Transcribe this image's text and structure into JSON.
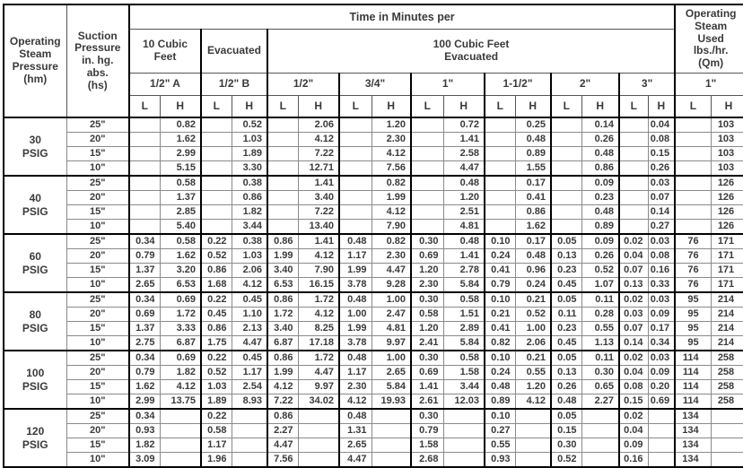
{
  "table": {
    "corner_operating": "Operating\nSteam\nPressure\n(hm)",
    "corner_suction": "Suction\nPressure\nin. hg.\nabs.\n(hs)",
    "time_header": "Time in Minutes per",
    "ten_cubic": "10 Cubic\nFeet",
    "evacuated": "Evacuated",
    "hundred_cubic": "100 Cubic Feet\nEvacuated",
    "steam_used": "Operating\nSteam\nUsed\nlbs./hr.\n(Qm)",
    "pipe_sizes": [
      "1/2\" A",
      "1/2\" B",
      "1/2\"",
      "3/4\"",
      "1\"",
      "1-1/2\"",
      "2\"",
      "3\"",
      "1\""
    ],
    "lh": [
      "L",
      "H"
    ],
    "groups": [
      {
        "pressure": "30\nPSIG",
        "rows": [
          {
            "suction": "25\"",
            "values": [
              "",
              "0.82",
              "",
              "0.52",
              "",
              "2.06",
              "",
              "1.20",
              "",
              "0.72",
              "",
              "0.25",
              "",
              "0.14",
              "",
              "0.04",
              "",
              "103"
            ]
          },
          {
            "suction": "20\"",
            "values": [
              "",
              "1.62",
              "",
              "1.03",
              "",
              "4.12",
              "",
              "2.30",
              "",
              "1.41",
              "",
              "0.48",
              "",
              "0.26",
              "",
              "0.08",
              "",
              "103"
            ]
          },
          {
            "suction": "15\"",
            "values": [
              "",
              "2.99",
              "",
              "1.89",
              "",
              "7.22",
              "",
              "4.12",
              "",
              "2.58",
              "",
              "0.89",
              "",
              "0.48",
              "",
              "0.15",
              "",
              "103"
            ]
          },
          {
            "suction": "10\"",
            "values": [
              "",
              "5.15",
              "",
              "3.30",
              "",
              "12.71",
              "",
              "7.56",
              "",
              "4.47",
              "",
              "1.55",
              "",
              "0.86",
              "",
              "0.26",
              "",
              "103"
            ]
          }
        ]
      },
      {
        "pressure": "40\nPSIG",
        "rows": [
          {
            "suction": "25\"",
            "values": [
              "",
              "0.58",
              "",
              "0.38",
              "",
              "1.41",
              "",
              "0.82",
              "",
              "0.48",
              "",
              "0.17",
              "",
              "0.09",
              "",
              "0.03",
              "",
              "126"
            ]
          },
          {
            "suction": "20\"",
            "values": [
              "",
              "1.37",
              "",
              "0.86",
              "",
              "3.40",
              "",
              "1.99",
              "",
              "1.20",
              "",
              "0.41",
              "",
              "0.23",
              "",
              "0.07",
              "",
              "126"
            ]
          },
          {
            "suction": "15\"",
            "values": [
              "",
              "2.85",
              "",
              "1.82",
              "",
              "7.22",
              "",
              "4.12",
              "",
              "2.51",
              "",
              "0.86",
              "",
              "0.48",
              "",
              "0.14",
              "",
              "126"
            ]
          },
          {
            "suction": "10\"",
            "values": [
              "",
              "5.40",
              "",
              "3.44",
              "",
              "13.40",
              "",
              "7.90",
              "",
              "4.81",
              "",
              "1.62",
              "",
              "0.89",
              "",
              "0.27",
              "",
              "126"
            ]
          }
        ]
      },
      {
        "pressure": "60\nPSIG",
        "rows": [
          {
            "suction": "25\"",
            "values": [
              "0.34",
              "0.58",
              "0.22",
              "0.38",
              "0.86",
              "1.41",
              "0.48",
              "0.82",
              "0.30",
              "0.48",
              "0.10",
              "0.17",
              "0.05",
              "0.09",
              "0.02",
              "0.03",
              "76",
              "171"
            ]
          },
          {
            "suction": "20\"",
            "values": [
              "0.79",
              "1.62",
              "0.52",
              "1.03",
              "1.99",
              "4.12",
              "1.17",
              "2.30",
              "0.69",
              "1.41",
              "0.24",
              "0.48",
              "0.13",
              "0.26",
              "0.04",
              "0.08",
              "76",
              "171"
            ]
          },
          {
            "suction": "15\"",
            "values": [
              "1.37",
              "3.20",
              "0.86",
              "2.06",
              "3.40",
              "7.90",
              "1.99",
              "4.47",
              "1.20",
              "2.78",
              "0.41",
              "0.96",
              "0.23",
              "0.52",
              "0.07",
              "0.16",
              "76",
              "171"
            ]
          },
          {
            "suction": "10\"",
            "values": [
              "2.65",
              "6.53",
              "1.68",
              "4.12",
              "6.53",
              "16.15",
              "3.78",
              "9.28",
              "2.30",
              "5.84",
              "0.79",
              "0.24",
              "0.45",
              "1.07",
              "0.13",
              "0.33",
              "76",
              "171"
            ]
          }
        ]
      },
      {
        "pressure": "80\nPSIG",
        "rows": [
          {
            "suction": "25\"",
            "values": [
              "0.34",
              "0.69",
              "0.22",
              "0.45",
              "0.86",
              "1.72",
              "0.48",
              "1.00",
              "0.30",
              "0.58",
              "0.10",
              "0.21",
              "0.05",
              "0.11",
              "0.02",
              "0.03",
              "95",
              "214"
            ]
          },
          {
            "suction": "20\"",
            "values": [
              "0.69",
              "1.72",
              "0.45",
              "1.10",
              "1.72",
              "4.12",
              "1.00",
              "2.47",
              "0.58",
              "1.51",
              "0.21",
              "0.52",
              "0.11",
              "0.28",
              "0.03",
              "0.09",
              "95",
              "214"
            ]
          },
          {
            "suction": "15\"",
            "values": [
              "1.37",
              "3.33",
              "0.86",
              "2.13",
              "3.40",
              "8.25",
              "1.99",
              "4.81",
              "1.20",
              "2.89",
              "0.41",
              "1.00",
              "0.23",
              "0.55",
              "0.07",
              "0.17",
              "95",
              "214"
            ]
          },
          {
            "suction": "10\"",
            "values": [
              "2.75",
              "6.87",
              "1.75",
              "4.47",
              "6.87",
              "17.18",
              "3.78",
              "9.97",
              "2.41",
              "5.84",
              "0.82",
              "2.06",
              "0.45",
              "1.13",
              "0.14",
              "0.34",
              "95",
              "214"
            ]
          }
        ]
      },
      {
        "pressure": "100\nPSIG",
        "rows": [
          {
            "suction": "25\"",
            "values": [
              "0.34",
              "0.69",
              "0.22",
              "0.45",
              "0.86",
              "1.72",
              "0.48",
              "1.00",
              "0.30",
              "0.58",
              "0.10",
              "0.21",
              "0.05",
              "0.11",
              "0.02",
              "0.03",
              "114",
              "258"
            ]
          },
          {
            "suction": "20\"",
            "values": [
              "0.79",
              "1.82",
              "0.52",
              "1.17",
              "1.99",
              "4.47",
              "1.17",
              "2.65",
              "0.69",
              "1.58",
              "0.24",
              "0.55",
              "0.13",
              "0.30",
              "0.04",
              "0.09",
              "114",
              "258"
            ]
          },
          {
            "suction": "15\"",
            "values": [
              "1.62",
              "4.12",
              "1.03",
              "2.54",
              "4.12",
              "9.97",
              "2.30",
              "5.84",
              "1.41",
              "3.44",
              "0.48",
              "1.20",
              "0.26",
              "0.65",
              "0.08",
              "0.20",
              "114",
              "258"
            ]
          },
          {
            "suction": "10\"",
            "values": [
              "2.99",
              "13.75",
              "1.89",
              "8.93",
              "7.22",
              "34.02",
              "4.12",
              "19.93",
              "2.61",
              "12.03",
              "0.89",
              "4.12",
              "0.48",
              "2.27",
              "0.15",
              "0.69",
              "114",
              "258"
            ]
          }
        ]
      },
      {
        "pressure": "120\nPSIG",
        "rows": [
          {
            "suction": "25\"",
            "values": [
              "0.34",
              "",
              "0.22",
              "",
              "0.86",
              "",
              "0.48",
              "",
              "0.30",
              "",
              "0.10",
              "",
              "0.05",
              "",
              "0.02",
              "",
              "134",
              ""
            ]
          },
          {
            "suction": "20\"",
            "values": [
              "0.93",
              "",
              "0.58",
              "",
              "2.27",
              "",
              "1.31",
              "",
              "0.79",
              "",
              "0.27",
              "",
              "0.15",
              "",
              "0.04",
              "",
              "134",
              ""
            ]
          },
          {
            "suction": "15\"",
            "values": [
              "1.82",
              "",
              "1.17",
              "",
              "4.47",
              "",
              "2.65",
              "",
              "1.58",
              "",
              "0.55",
              "",
              "0.30",
              "",
              "0.09",
              "",
              "134",
              ""
            ]
          },
          {
            "suction": "10\"",
            "values": [
              "3.09",
              "",
              "1.96",
              "",
              "7.56",
              "",
              "4.47",
              "",
              "2.68",
              "",
              "0.93",
              "",
              "0.52",
              "",
              "0.16",
              "",
              "134",
              ""
            ]
          }
        ]
      }
    ]
  }
}
